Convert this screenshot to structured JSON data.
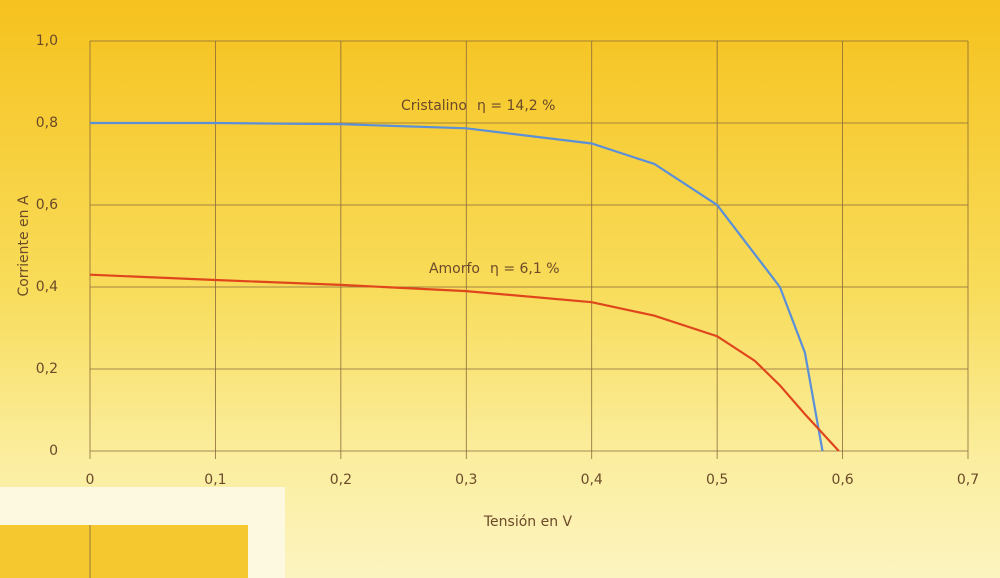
{
  "chart_data": {
    "type": "line",
    "x_label": "Tensión  en V",
    "y_label": "Corriente en A",
    "xlim": [
      0,
      0.7
    ],
    "ylim": [
      0,
      1.0
    ],
    "xticks": [
      0,
      {
        "value": 0.1,
        "label": "0,1"
      },
      {
        "value": 0.2,
        "label": "0,2"
      },
      {
        "value": 0.3,
        "label": "0,3"
      },
      {
        "value": 0.4,
        "label": "0,4"
      },
      {
        "value": 0.5,
        "label": "0,5"
      },
      {
        "value": 0.6,
        "label": "0,6"
      },
      {
        "value": 0.7,
        "label": "0,7"
      }
    ],
    "yticks": [
      0,
      {
        "value": 0.2,
        "label": "0,2"
      },
      {
        "value": 0.4,
        "label": "0,4"
      },
      {
        "value": 0.6,
        "label": "0,6"
      },
      {
        "value": 0.8,
        "label": "0,8"
      },
      {
        "value": 1.0,
        "label": "1,0"
      }
    ],
    "grid": true,
    "series": [
      {
        "name": "Cristalino",
        "annotation": "η = 14,2 %",
        "color": "#5b8fd8",
        "x": [
          0,
          0.1,
          0.2,
          0.3,
          0.4,
          0.45,
          0.5,
          0.53,
          0.55,
          0.57,
          0.584
        ],
        "values": [
          0.8,
          0.8,
          0.797,
          0.787,
          0.75,
          0.7,
          0.6,
          0.48,
          0.4,
          0.24,
          0
        ]
      },
      {
        "name": "Amorfo",
        "annotation": "η = 6,1 %",
        "color": "#e0461c",
        "x": [
          0,
          0.1,
          0.2,
          0.3,
          0.4,
          0.45,
          0.5,
          0.53,
          0.55,
          0.57,
          0.597
        ],
        "values": [
          0.43,
          0.417,
          0.405,
          0.39,
          0.363,
          0.33,
          0.28,
          0.22,
          0.16,
          0.09,
          0
        ]
      }
    ]
  }
}
